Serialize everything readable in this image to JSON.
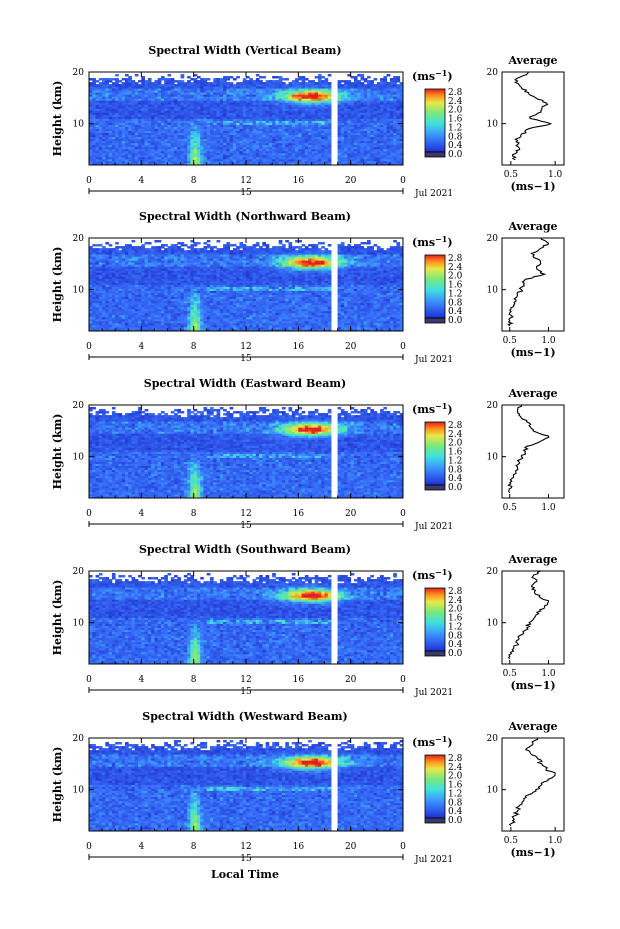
{
  "figure": {
    "xlabel": "Local Time",
    "date_label": "15",
    "month_label": "Jul 2021",
    "colorbar_unit_base": "(ms",
    "colorbar_unit_exp": "−1",
    "colorbar_unit_close": ")",
    "avg_title": "Average",
    "colors": {
      "background": "#ffffff",
      "low": "#1e2ed6",
      "mid": "#3a8cff",
      "cyan": "#40e0e0",
      "yellow": "#e8e84a",
      "red": "#e02020"
    }
  },
  "chart_data": [
    {
      "type": "heatmap",
      "title": "Spectral Width (Vertical Beam)",
      "ylabel": "Height (km)",
      "xlim": [
        0,
        24
      ],
      "ylim": [
        2,
        20
      ],
      "x_ticks": [
        "0",
        "4",
        "8",
        "12",
        "16",
        "20",
        "0"
      ],
      "y_ticks": [
        "10",
        "20"
      ],
      "colorbar": {
        "ticks": [
          "0.0",
          "0.4",
          "0.8",
          "1.2",
          "1.6",
          "2.0",
          "2.4",
          "2.8"
        ],
        "range": [
          0.0,
          2.8
        ]
      },
      "data_gap": [
        18.6,
        19.0
      ],
      "average": {
        "title": "Average",
        "xlabel": "(ms−1)",
        "x_ticks": [
          "0.5",
          "1.0"
        ],
        "xlim": [
          0.4,
          1.1
        ],
        "height": [
          3,
          4,
          5,
          6,
          7,
          8,
          9,
          10,
          11,
          12,
          13,
          14,
          15,
          16,
          17,
          18,
          19,
          20
        ],
        "value": [
          0.55,
          0.52,
          0.6,
          0.58,
          0.55,
          0.62,
          0.7,
          0.95,
          0.72,
          0.8,
          0.85,
          0.9,
          0.78,
          0.7,
          0.62,
          0.55,
          0.6,
          0.7
        ]
      }
    },
    {
      "type": "heatmap",
      "title": "Spectral Width (Northward Beam)",
      "ylabel": "Height (km)",
      "xlim": [
        0,
        24
      ],
      "ylim": [
        2,
        20
      ],
      "x_ticks": [
        "0",
        "4",
        "8",
        "12",
        "16",
        "20",
        "0"
      ],
      "y_ticks": [
        "10",
        "20"
      ],
      "colorbar": {
        "ticks": [
          "0.0",
          "0.4",
          "0.8",
          "1.2",
          "1.6",
          "2.0",
          "2.4",
          "2.8"
        ],
        "range": [
          0.0,
          2.8
        ]
      },
      "data_gap": [
        18.6,
        19.0
      ],
      "average": {
        "title": "Average",
        "xlabel": "(ms−1)",
        "x_ticks": [
          "0.5",
          "1.0"
        ],
        "xlim": [
          0.4,
          1.2
        ],
        "height": [
          3,
          4,
          5,
          6,
          7,
          8,
          9,
          10,
          11,
          12,
          13,
          14,
          15,
          16,
          17,
          18,
          19,
          20
        ],
        "value": [
          0.5,
          0.5,
          0.52,
          0.5,
          0.55,
          0.58,
          0.6,
          0.65,
          0.68,
          0.7,
          0.95,
          0.85,
          0.9,
          0.85,
          0.78,
          0.9,
          1.0,
          0.9
        ]
      }
    },
    {
      "type": "heatmap",
      "title": "Spectral Width (Eastward Beam)",
      "ylabel": "Height (km)",
      "xlim": [
        0,
        24
      ],
      "ylim": [
        2,
        20
      ],
      "x_ticks": [
        "0",
        "4",
        "8",
        "12",
        "16",
        "20",
        "0"
      ],
      "y_ticks": [
        "10",
        "20"
      ],
      "colorbar": {
        "ticks": [
          "0.0",
          "0.4",
          "0.8",
          "1.2",
          "1.6",
          "2.0",
          "2.4",
          "2.8"
        ],
        "range": [
          0.0,
          2.8
        ]
      },
      "data_gap": [
        18.6,
        19.0
      ],
      "average": {
        "title": "Average",
        "xlabel": "",
        "x_ticks": [
          "0.5",
          "1.0"
        ],
        "xlim": [
          0.4,
          1.2
        ],
        "height": [
          3,
          4,
          5,
          6,
          7,
          8,
          9,
          10,
          11,
          12,
          13,
          14,
          15,
          16,
          17,
          18,
          19,
          20
        ],
        "value": [
          0.5,
          0.52,
          0.5,
          0.55,
          0.58,
          0.6,
          0.62,
          0.65,
          0.7,
          0.72,
          0.9,
          1.0,
          0.8,
          0.75,
          0.72,
          0.62,
          0.6,
          0.65
        ]
      }
    },
    {
      "type": "heatmap",
      "title": "Spectral Width (Southward Beam)",
      "ylabel": "Height (km)",
      "xlim": [
        0,
        24
      ],
      "ylim": [
        2,
        20
      ],
      "x_ticks": [
        "0",
        "4",
        "8",
        "12",
        "16",
        "20",
        "0"
      ],
      "y_ticks": [
        "10",
        "20"
      ],
      "colorbar": {
        "ticks": [
          "0.0",
          "0.4",
          "0.8",
          "1.2",
          "1.6",
          "2.0",
          "2.4",
          "2.8"
        ],
        "range": [
          0.0,
          2.8
        ]
      },
      "data_gap": [
        18.6,
        19.0
      ],
      "average": {
        "title": "Average",
        "xlabel": "(ms−1)",
        "x_ticks": [
          "0.5",
          "1.0"
        ],
        "xlim": [
          0.4,
          1.2
        ],
        "height": [
          3,
          4,
          5,
          6,
          7,
          8,
          9,
          10,
          11,
          12,
          13,
          14,
          15,
          16,
          17,
          18,
          19,
          20
        ],
        "value": [
          0.5,
          0.52,
          0.55,
          0.6,
          0.62,
          0.68,
          0.72,
          0.75,
          0.82,
          0.85,
          0.95,
          1.0,
          0.88,
          0.82,
          0.78,
          0.85,
          0.8,
          0.9
        ]
      }
    },
    {
      "type": "heatmap",
      "title": "Spectral Width (Westward Beam)",
      "ylabel": "Height (km)",
      "xlim": [
        0,
        24
      ],
      "ylim": [
        2,
        20
      ],
      "x_ticks": [
        "0",
        "4",
        "8",
        "12",
        "16",
        "20",
        "0"
      ],
      "y_ticks": [
        "10",
        "20"
      ],
      "colorbar": {
        "ticks": [
          "0.0",
          "0.4",
          "0.8",
          "1.2",
          "1.6",
          "2.0",
          "2.4",
          "2.8"
        ],
        "range": [
          0.0,
          2.8
        ]
      },
      "data_gap": [
        18.6,
        19.0
      ],
      "average": {
        "title": "Average",
        "xlabel": "(ms−1)",
        "x_ticks": [
          "0.5",
          "1.0"
        ],
        "xlim": [
          0.4,
          1.1
        ],
        "height": [
          3,
          4,
          5,
          6,
          7,
          8,
          9,
          10,
          11,
          12,
          13,
          14,
          15,
          16,
          17,
          18,
          19,
          20
        ],
        "value": [
          0.5,
          0.52,
          0.55,
          0.58,
          0.6,
          0.65,
          0.7,
          0.78,
          0.85,
          0.92,
          1.0,
          0.9,
          0.85,
          0.8,
          0.72,
          0.68,
          0.75,
          0.8
        ]
      }
    }
  ]
}
